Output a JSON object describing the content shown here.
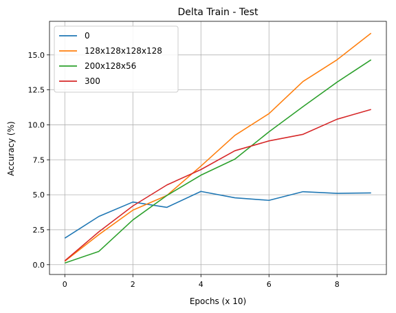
{
  "chart_data": {
    "type": "line",
    "title": "Delta Train - Test",
    "xlabel": "Epochs (x 10)",
    "ylabel": "Accuracy (%)",
    "x": [
      0,
      1,
      2,
      3,
      4,
      5,
      6,
      7,
      8,
      9
    ],
    "xlim": [
      -0.45,
      9.45
    ],
    "ylim": [
      -0.7,
      17.4
    ],
    "xticks": [
      0,
      2,
      4,
      6,
      8
    ],
    "xtick_labels": [
      "0",
      "2",
      "4",
      "6",
      "8"
    ],
    "yticks": [
      0.0,
      2.5,
      5.0,
      7.5,
      10.0,
      12.5,
      15.0
    ],
    "ytick_labels": [
      "0.0",
      "2.5",
      "5.0",
      "7.5",
      "10.0",
      "12.5",
      "15.0"
    ],
    "grid": true,
    "legend_position": "upper-left",
    "series": [
      {
        "name": "0",
        "color": "#1f77b4",
        "values": [
          1.9,
          3.45,
          4.48,
          4.1,
          5.24,
          4.78,
          4.6,
          5.22,
          5.1,
          5.13
        ]
      },
      {
        "name": "128x128x128x128",
        "color": "#ff7f0e",
        "values": [
          0.25,
          2.15,
          3.9,
          4.95,
          7.05,
          9.25,
          10.8,
          13.1,
          14.65,
          16.55
        ]
      },
      {
        "name": "200x128x56",
        "color": "#2ca02c",
        "values": [
          0.12,
          0.95,
          3.2,
          4.95,
          6.4,
          7.55,
          9.5,
          11.3,
          13.05,
          14.65
        ]
      },
      {
        "name": "300",
        "color": "#d62728",
        "values": [
          0.28,
          2.35,
          4.2,
          5.7,
          6.8,
          8.15,
          8.85,
          9.32,
          10.4,
          11.1
        ]
      }
    ]
  }
}
